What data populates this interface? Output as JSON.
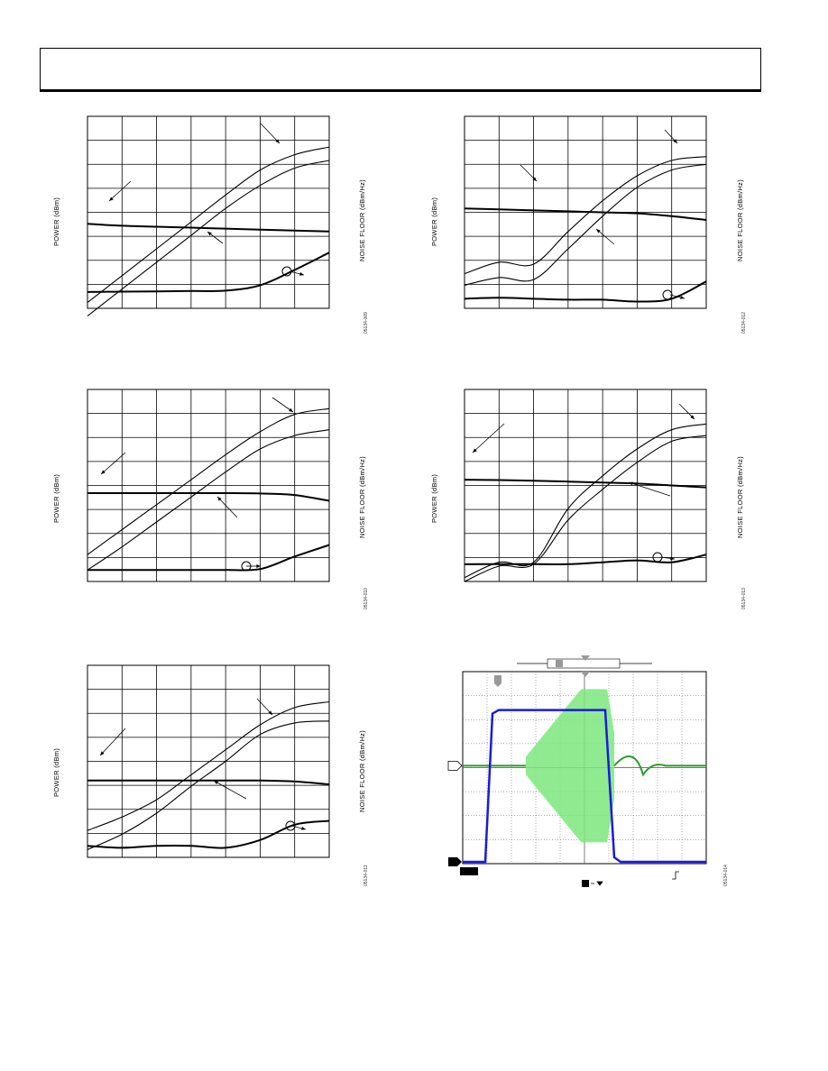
{
  "header": {},
  "charts": [
    {
      "ylabel": "POWER (dBm)",
      "y2label": "NOISE FLOOR (dBm/Hz)",
      "fig": "05134-009"
    },
    {
      "ylabel": "POWER (dBm)",
      "y2label": "NOISE FLOOR (dBm/Hz)",
      "fig": "05134-012"
    },
    {
      "ylabel": "POWER (dBm)",
      "y2label": "NOISE FLOOR (dBm/Hz)",
      "fig": "05134-010"
    },
    {
      "ylabel": "POWER (dBm)",
      "y2label": "NOISE FLOOR (dBm/Hz)",
      "fig": "05134-013"
    },
    {
      "ylabel": "POWER (dBm)",
      "y2label": "NOISE FLOOR (dBm/Hz)",
      "fig": "05134-011"
    },
    {
      "ylabel": "",
      "y2label": "",
      "fig": "05134-014"
    }
  ],
  "colors": {
    "trace1": "#1a1adc",
    "trace2": "#7de87d",
    "trace2_dark": "#2e9a2e",
    "ink": "#000000"
  },
  "chart_data": [
    {
      "type": "line",
      "title": "",
      "xlabel": "",
      "ylabel": "POWER (dBm)",
      "y2label": "NOISE FLOOR (dBm/Hz)",
      "grid": true,
      "x": [
        0,
        1,
        2,
        3,
        4,
        5,
        6,
        7
      ],
      "series": [
        {
          "values": [
            0.3,
            1.7,
            3.1,
            4.5,
            5.9,
            7.2,
            8.0,
            8.4
          ]
        },
        {
          "values": [
            -0.4,
            1.0,
            2.4,
            3.8,
            5.2,
            6.4,
            7.3,
            7.7
          ]
        },
        {
          "values": [
            4.4,
            4.3,
            4.25,
            4.2,
            4.15,
            4.1,
            4.05,
            4.0
          ]
        },
        {
          "values": [
            0.85,
            0.87,
            0.88,
            0.9,
            0.92,
            1.2,
            2.0,
            2.9
          ]
        }
      ]
    },
    {
      "type": "line",
      "title": "",
      "xlabel": "",
      "ylabel": "POWER (dBm)",
      "y2label": "NOISE FLOOR (dBm/Hz)",
      "grid": true,
      "x": [
        0,
        1,
        2,
        3,
        4,
        5,
        6,
        7
      ],
      "series": [
        {
          "values": [
            1.8,
            2.4,
            2.3,
            4.0,
            5.6,
            6.9,
            7.7,
            7.9
          ]
        },
        {
          "values": [
            1.2,
            1.6,
            1.5,
            3.1,
            4.8,
            6.3,
            7.2,
            7.5
          ]
        },
        {
          "values": [
            5.2,
            5.15,
            5.1,
            5.05,
            5.0,
            4.95,
            4.8,
            4.6
          ]
        },
        {
          "values": [
            0.5,
            0.55,
            0.5,
            0.45,
            0.45,
            0.35,
            0.5,
            1.4
          ]
        }
      ]
    },
    {
      "type": "line",
      "title": "",
      "xlabel": "",
      "ylabel": "POWER (dBm)",
      "y2label": "NOISE FLOOR (dBm/Hz)",
      "grid": true,
      "x": [
        0,
        1,
        2,
        3,
        4,
        5,
        6,
        7
      ],
      "series": [
        {
          "values": [
            1.4,
            2.7,
            4.0,
            5.3,
            6.6,
            7.8,
            8.7,
            9.0
          ]
        },
        {
          "values": [
            0.6,
            1.8,
            3.1,
            4.4,
            5.7,
            6.9,
            7.6,
            7.9
          ]
        },
        {
          "values": [
            4.6,
            4.6,
            4.6,
            4.6,
            4.6,
            4.58,
            4.5,
            4.2
          ]
        },
        {
          "values": [
            0.6,
            0.6,
            0.6,
            0.6,
            0.6,
            0.65,
            1.3,
            1.9
          ]
        }
      ]
    },
    {
      "type": "line",
      "title": "",
      "xlabel": "",
      "ylabel": "POWER (dBm)",
      "y2label": "NOISE FLOOR (dBm/Hz)",
      "grid": true,
      "x": [
        0,
        1,
        2,
        3,
        4,
        5,
        6,
        7
      ],
      "series": [
        {
          "values": [
            0.2,
            1.0,
            1.0,
            3.8,
            5.5,
            6.9,
            7.9,
            8.2
          ]
        },
        {
          "values": [
            0.0,
            0.8,
            0.9,
            3.2,
            4.8,
            6.2,
            7.3,
            7.6
          ]
        },
        {
          "values": [
            5.3,
            5.28,
            5.25,
            5.2,
            5.15,
            5.1,
            5.0,
            4.9
          ]
        },
        {
          "values": [
            0.9,
            0.9,
            0.9,
            0.9,
            1.0,
            1.1,
            1.0,
            1.4
          ]
        }
      ]
    },
    {
      "type": "line",
      "title": "",
      "xlabel": "",
      "ylabel": "POWER (dBm)",
      "y2label": "NOISE FLOOR (dBm/Hz)",
      "grid": true,
      "x": [
        0,
        1,
        2,
        3,
        4,
        5,
        6,
        7
      ],
      "series": [
        {
          "values": [
            1.4,
            2.1,
            3.0,
            4.3,
            5.6,
            6.9,
            7.8,
            8.1
          ]
        },
        {
          "values": [
            0.4,
            1.2,
            2.3,
            3.7,
            5.0,
            6.4,
            7.0,
            7.1
          ]
        },
        {
          "values": [
            4.0,
            4.0,
            4.0,
            4.0,
            4.0,
            4.0,
            3.95,
            3.8
          ]
        },
        {
          "values": [
            0.6,
            0.5,
            0.6,
            0.6,
            0.5,
            0.9,
            1.7,
            1.9
          ]
        }
      ]
    },
    {
      "type": "line",
      "title": "",
      "xlabel": "",
      "ylabel": "",
      "grid": true,
      "x": [
        0,
        1,
        2,
        3,
        4,
        5,
        6,
        7,
        8,
        9,
        10
      ],
      "series": [
        {
          "values": [
            0.0,
            6.4,
            6.4,
            6.4,
            6.4,
            6.4,
            6.4,
            0.0,
            0.0,
            0.0,
            0.0
          ]
        },
        {
          "values": [
            3.55,
            3.55,
            3.55,
            3.55,
            3.55,
            3.55,
            3.55,
            3.55,
            3.55,
            3.55,
            3.55
          ]
        }
      ]
    }
  ]
}
